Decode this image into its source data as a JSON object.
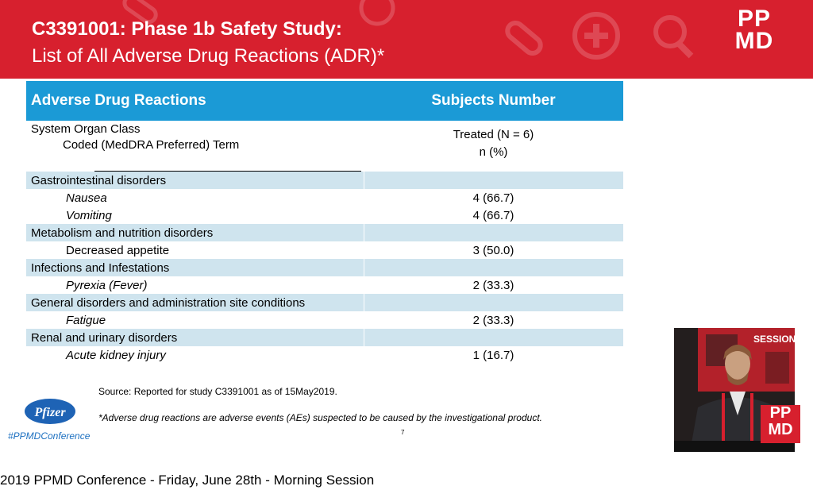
{
  "slide": {
    "title_line1": "C3391001: Phase 1b Safety Study:",
    "title_line2": "List of All Adverse Drug Reactions (ADR)*",
    "logo_text_line1": "PP",
    "logo_text_line2": "MD",
    "background_icons": [
      "pill-icon",
      "plus-circle-icon",
      "magnifier-icon"
    ],
    "colors": {
      "header_red": "#d7202e",
      "table_header_blue": "#1b9ad6",
      "band_light_blue": "#cfe4ee"
    }
  },
  "table": {
    "header": {
      "col1": "Adverse Drug Reactions",
      "col2": "Subjects Number"
    },
    "subheader": {
      "soc": "System Organ Class",
      "coded": "Coded (MedDRA Preferred) Term",
      "treated": "Treated  (N = 6)",
      "npct": "n (%)"
    },
    "rows": [
      {
        "type": "category",
        "label": "Gastrointestinal disorders",
        "value": ""
      },
      {
        "type": "term",
        "label": "Nausea",
        "value": "4 (66.7)",
        "italic": true
      },
      {
        "type": "term",
        "label": "Vomiting",
        "value": "4 (66.7)",
        "italic": true
      },
      {
        "type": "category",
        "label": "Metabolism and nutrition disorders",
        "value": ""
      },
      {
        "type": "term",
        "label": "Decreased appetite",
        "value": "3 (50.0)",
        "italic": false
      },
      {
        "type": "category",
        "label": "Infections and Infestations",
        "value": ""
      },
      {
        "type": "term",
        "label": "Pyrexia (Fever)",
        "value": "2 (33.3)",
        "italic": true
      },
      {
        "type": "category",
        "label": "General disorders and administration site conditions",
        "value": ""
      },
      {
        "type": "term",
        "label": "Fatigue",
        "value": "2 (33.3)",
        "italic": true
      },
      {
        "type": "category",
        "label": "Renal and urinary disorders",
        "value": ""
      },
      {
        "type": "term",
        "label": "Acute kidney injury",
        "value": "1 (16.7)",
        "italic": true
      }
    ]
  },
  "source": "Source: Reported for study C3391001 as of 15May2019.",
  "footnote": "*Adverse drug reactions are adverse events (AEs) suspected to be caused by the investigational product.",
  "page_number": "7",
  "pfizer_logo_text": "Pfizer",
  "hashtag": "#PPMDConference",
  "speaker_video": {
    "banner_text": "SESSION",
    "logo_text_line1": "PP",
    "logo_text_line2": "MD"
  },
  "session_caption": "2019 PPMD Conference - Friday, June 28th - Morning Session"
}
